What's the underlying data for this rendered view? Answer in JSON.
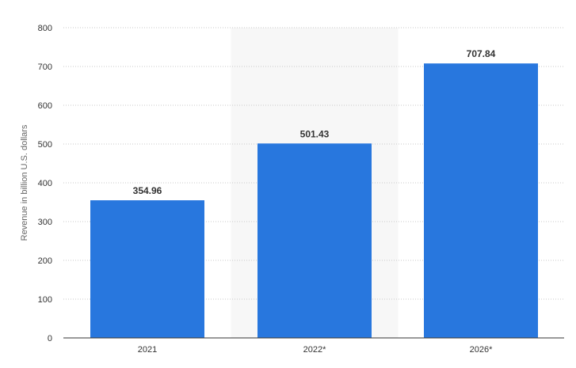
{
  "chart_data": {
    "type": "bar",
    "title": "",
    "xlabel": "",
    "ylabel": "Revenue in billion U.S. dollars",
    "categories": [
      "2021",
      "2022*",
      "2026*"
    ],
    "values": [
      354.96,
      501.43,
      707.84
    ],
    "value_labels": [
      "354.96",
      "501.43",
      "707.84"
    ],
    "ylim": [
      0,
      800
    ],
    "yticks": [
      "0",
      "100",
      "200",
      "300",
      "400",
      "500",
      "600",
      "700",
      "800"
    ],
    "grid": true,
    "highlighted_category": "2022*",
    "colors": {
      "bar": "#2877de",
      "grid": "#c8c8c8",
      "highlight_band": "#f7f7f7",
      "axis": "#333333"
    }
  }
}
